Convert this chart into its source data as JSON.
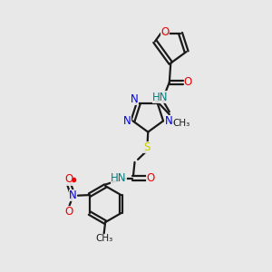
{
  "bg_color": "#e8e8e8",
  "bond_color": "#1a1a1a",
  "n_color": "#0000ee",
  "o_color": "#ee0000",
  "s_color": "#cccc00",
  "h_color": "#008080",
  "lw": 1.6,
  "fs": 8.5,
  "figsize": [
    3.0,
    3.0
  ],
  "dpi": 100,
  "xlim": [
    0,
    10
  ],
  "ylim": [
    0,
    10
  ]
}
